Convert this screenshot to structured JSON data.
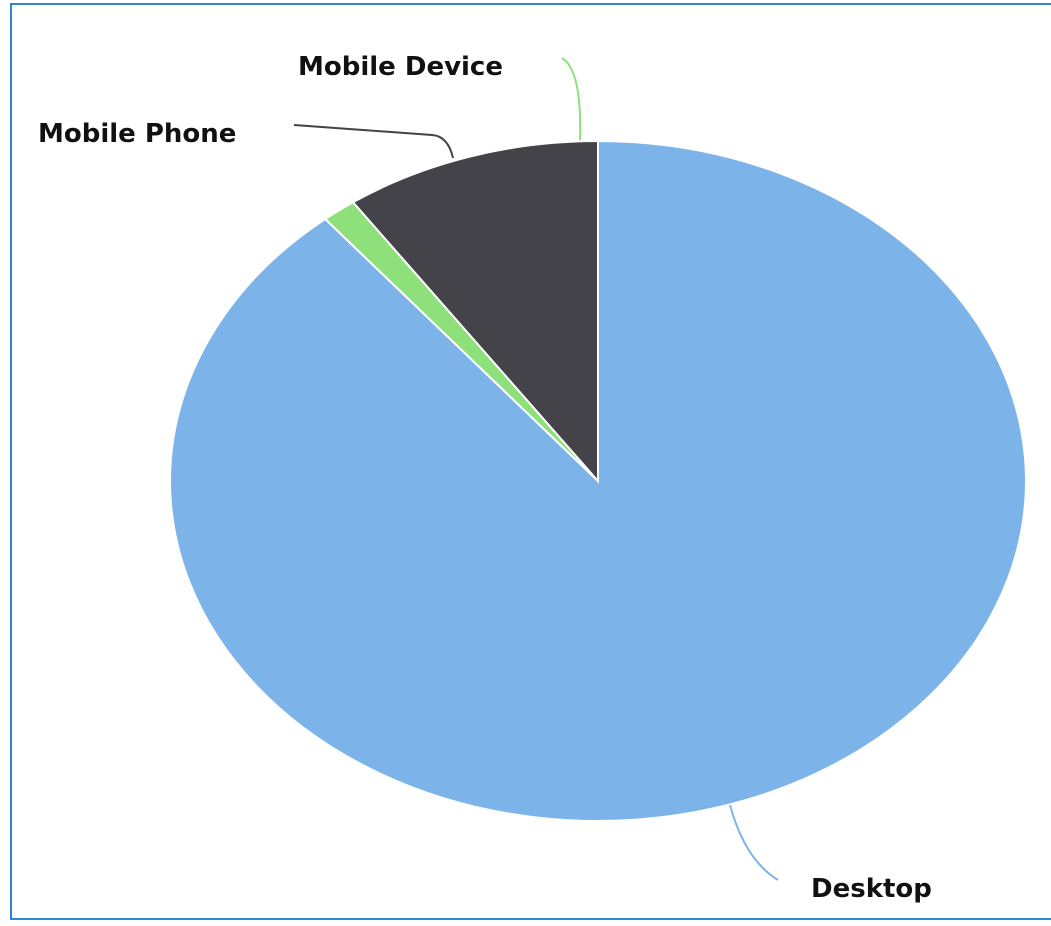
{
  "chart_data": {
    "type": "pie",
    "start_angle_deg": 0,
    "direction": "clockwise",
    "legend": "none",
    "slices": [
      {
        "label": "Desktop",
        "value": 89.0,
        "color": "#7cb4ea"
      },
      {
        "label": "Mobile Device",
        "value": 1.3,
        "color": "#8de07a"
      },
      {
        "label": "Mobile Phone",
        "value": 9.7,
        "color": "#434349"
      }
    ]
  }
}
